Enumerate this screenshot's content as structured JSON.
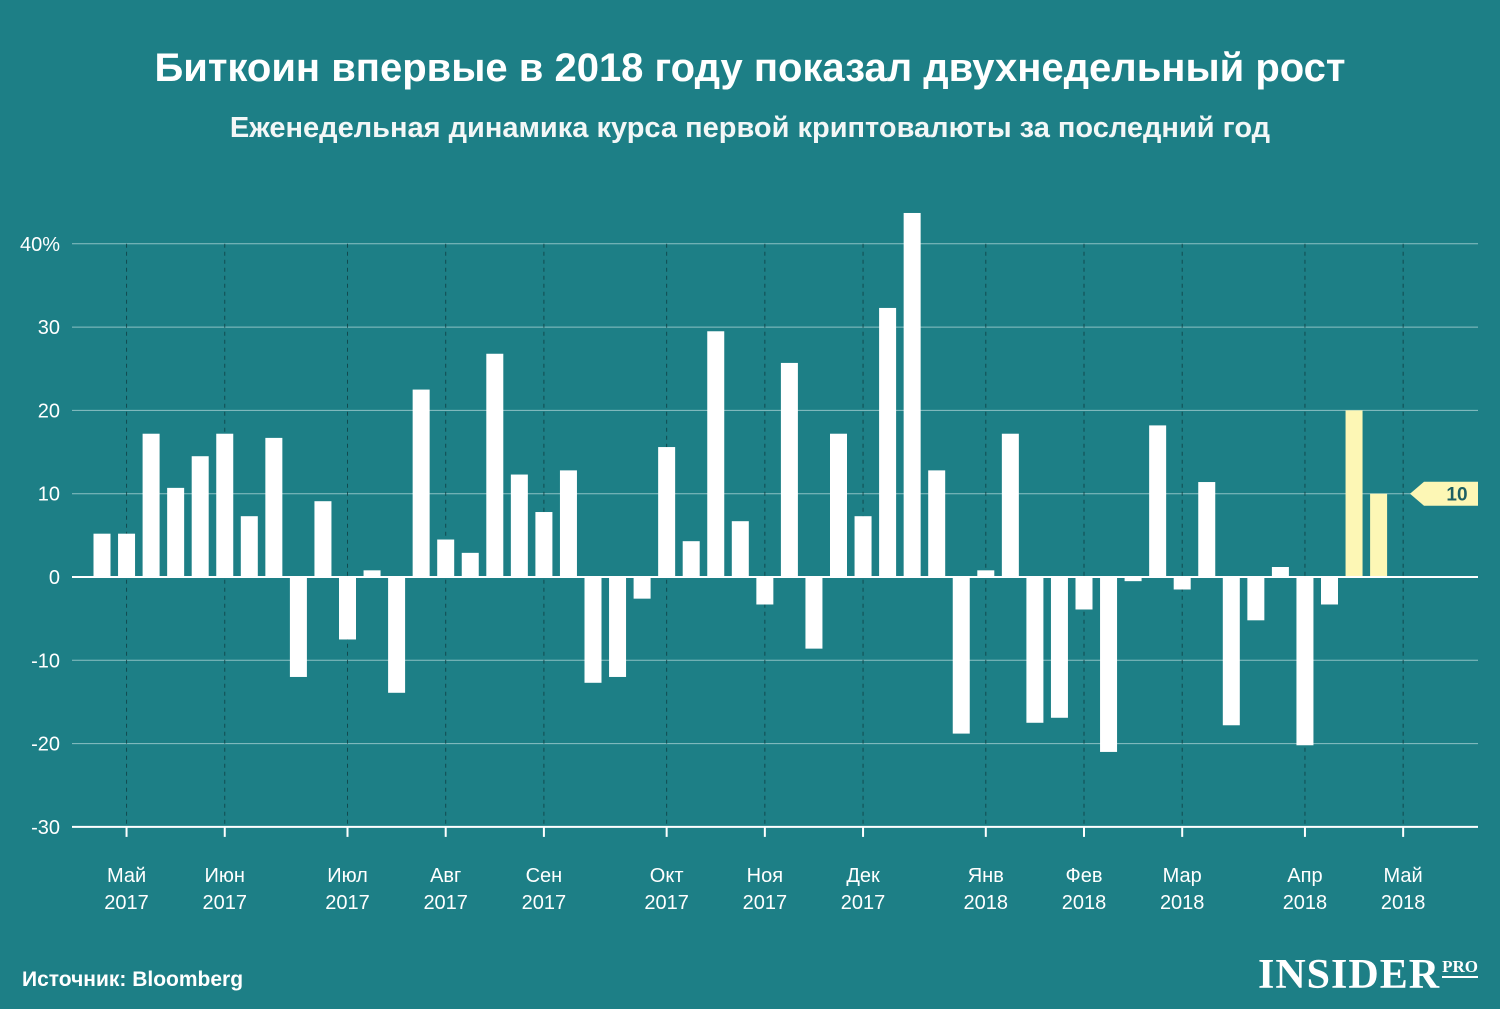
{
  "header": {
    "title": "Биткоин впервые в 2018 году показал двухнедельный рост",
    "subtitle": "Еженедельная динамика курса первой криптовалюты за последний год"
  },
  "footer": {
    "source": "Источник: Bloomberg",
    "logo_main": "INSIDER",
    "logo_sub": "PRO"
  },
  "colors": {
    "background": "#1d7f86",
    "bar": "#ffffff",
    "highlight": "#fdf7b5",
    "grid": "#8cc1c4"
  },
  "chart_data": {
    "type": "bar",
    "title": "Биткоин впервые в 2018 году показал двухнедельный рост",
    "subtitle": "Еженедельная динамика курса первой криптовалюты за последний год",
    "ylim": [
      -30,
      40
    ],
    "yticks": [
      40,
      30,
      20,
      10,
      0,
      -10,
      -20,
      -30
    ],
    "ytick_labels": [
      "40%",
      "30",
      "20",
      "10",
      "0",
      "-10",
      "-20",
      "-30"
    ],
    "grid": true,
    "month_labels": [
      {
        "month": "Май",
        "year": "2017",
        "week": 1
      },
      {
        "month": "Июн",
        "year": "2017",
        "week": 5
      },
      {
        "month": "Июл",
        "year": "2017",
        "week": 10
      },
      {
        "month": "Авг",
        "year": "2017",
        "week": 14
      },
      {
        "month": "Сен",
        "year": "2017",
        "week": 18
      },
      {
        "month": "Окт",
        "year": "2017",
        "week": 23
      },
      {
        "month": "Ноя",
        "year": "2017",
        "week": 27
      },
      {
        "month": "Дек",
        "year": "2017",
        "week": 31
      },
      {
        "month": "Янв",
        "year": "2018",
        "week": 36
      },
      {
        "month": "Фев",
        "year": "2018",
        "week": 40
      },
      {
        "month": "Мар",
        "year": "2018",
        "week": 44
      },
      {
        "month": "Апр",
        "year": "2018",
        "week": 49
      },
      {
        "month": "Май",
        "year": "2018",
        "week": 53
      }
    ],
    "values": [
      5.2,
      5.2,
      17.2,
      10.7,
      14.5,
      17.2,
      7.3,
      16.7,
      -12.0,
      9.1,
      -7.5,
      0.8,
      -13.9,
      22.5,
      4.5,
      2.9,
      26.8,
      12.3,
      7.8,
      12.8,
      -12.7,
      -12.0,
      -2.6,
      15.6,
      4.3,
      29.5,
      6.7,
      -3.3,
      25.7,
      -8.6,
      17.2,
      7.3,
      32.3,
      43.7,
      12.8,
      -18.8,
      0.8,
      17.2,
      -17.5,
      -16.9,
      -3.9,
      -21.0,
      -0.5,
      18.2,
      -1.5,
      11.4,
      -17.8,
      -5.2,
      1.2,
      -20.2,
      -3.3,
      20.0,
      10.0
    ],
    "highlight_indices": [
      51,
      52
    ],
    "annotation": {
      "label": "10",
      "value": 10
    }
  }
}
